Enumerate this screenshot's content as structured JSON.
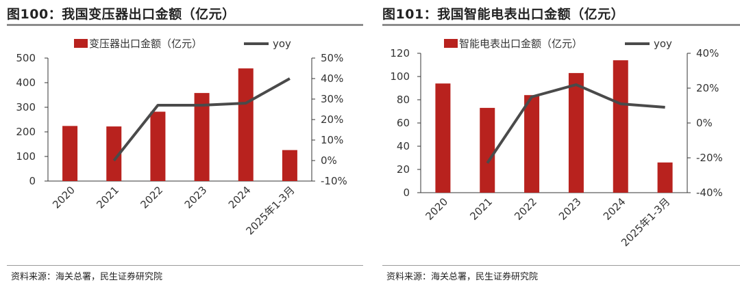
{
  "colors": {
    "bar": "#b8221e",
    "line": "#4a4a4a",
    "axis": "#333333",
    "rule": "#8b8b8b"
  },
  "chart_data": [
    {
      "type": "bar",
      "figure_title": "图100：我国变压器出口金额（亿元）",
      "source": "资料来源：海关总署，民生证券研究院",
      "categories": [
        "2020",
        "2021",
        "2022",
        "2023",
        "2024",
        "2025年1-3月"
      ],
      "series": [
        {
          "name": "变压器出口金额（亿元）",
          "type": "bar",
          "axis": "left",
          "values": [
            224,
            222,
            282,
            358,
            458,
            126
          ]
        },
        {
          "name": "yoy",
          "type": "line",
          "axis": "right",
          "values": [
            null,
            0,
            27,
            27,
            28,
            40
          ]
        }
      ],
      "ylim_left": [
        0,
        500
      ],
      "yticks_left": [
        "0",
        "100",
        "200",
        "300",
        "400",
        "500"
      ],
      "ylim_right": [
        -10,
        50
      ],
      "yticks_right": [
        "-10%",
        "0%",
        "10%",
        "20%",
        "30%",
        "40%",
        "50%"
      ],
      "legend_position": "top",
      "grid": false
    },
    {
      "type": "bar",
      "figure_title": "图101：我国智能电表出口金额（亿元）",
      "source": "资料来源：海关总署，民生证券研究院",
      "categories": [
        "2020",
        "2021",
        "2022",
        "2023",
        "2024",
        "2025年1-3月"
      ],
      "series": [
        {
          "name": "智能电表出口金额（亿元）",
          "type": "bar",
          "axis": "left",
          "values": [
            94,
            73,
            84,
            103,
            114,
            26
          ]
        },
        {
          "name": "yoy",
          "type": "line",
          "axis": "right",
          "values": [
            null,
            -23,
            15,
            22,
            11,
            9
          ]
        }
      ],
      "ylim_left": [
        0,
        120
      ],
      "yticks_left": [
        "0",
        "20",
        "40",
        "60",
        "80",
        "100",
        "120"
      ],
      "ylim_right": [
        -40,
        40
      ],
      "yticks_right": [
        "-40%",
        "-20%",
        "0%",
        "20%",
        "40%"
      ],
      "legend_position": "top",
      "grid": false
    }
  ]
}
